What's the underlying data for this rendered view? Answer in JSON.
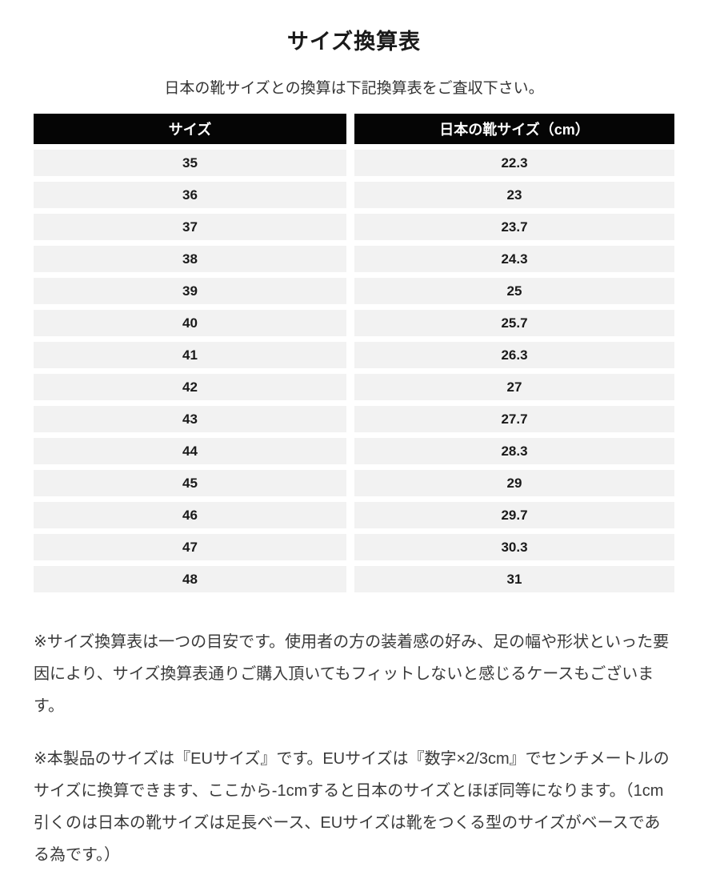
{
  "page": {
    "title": "サイズ換算表",
    "subtitle": "日本の靴サイズとの換算は下記換算表をご査収下さい。"
  },
  "table": {
    "headers": [
      "サイズ",
      "日本の靴サイズ（cm）"
    ],
    "rows": [
      {
        "size": "35",
        "jp_cm": "22.3"
      },
      {
        "size": "36",
        "jp_cm": "23"
      },
      {
        "size": "37",
        "jp_cm": "23.7"
      },
      {
        "size": "38",
        "jp_cm": "24.3"
      },
      {
        "size": "39",
        "jp_cm": "25"
      },
      {
        "size": "40",
        "jp_cm": "25.7"
      },
      {
        "size": "41",
        "jp_cm": "26.3"
      },
      {
        "size": "42",
        "jp_cm": "27"
      },
      {
        "size": "43",
        "jp_cm": "27.7"
      },
      {
        "size": "44",
        "jp_cm": "28.3"
      },
      {
        "size": "45",
        "jp_cm": "29"
      },
      {
        "size": "46",
        "jp_cm": "29.7"
      },
      {
        "size": "47",
        "jp_cm": "30.3"
      },
      {
        "size": "48",
        "jp_cm": "31"
      }
    ]
  },
  "notes": [
    "※サイズ換算表は一つの目安です。使用者の方の装着感の好み、足の幅や形状といった要因により、サイズ換算表通りご購入頂いてもフィットしないと感じるケースもございます。",
    "※本製品のサイズは『EUサイズ』です。EUサイズは『数字×2/3cm』でセンチメートルのサイズに換算できます、ここから-1cmすると日本のサイズとほぼ同等になります。（1cm引くのは日本の靴サイズは足長ベース、EUサイズは靴をつくる型のサイズがベースである為です。）"
  ],
  "colors": {
    "header_bg": "#050505",
    "header_text": "#ffffff",
    "row_bg": "#f2f2f2"
  }
}
